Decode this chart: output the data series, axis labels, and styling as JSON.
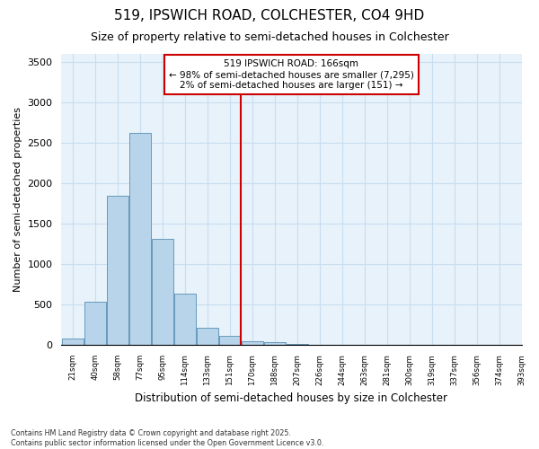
{
  "title1": "519, IPSWICH ROAD, COLCHESTER, CO4 9HD",
  "title2": "Size of property relative to semi-detached houses in Colchester",
  "xlabel": "Distribution of semi-detached houses by size in Colchester",
  "ylabel": "Number of semi-detached properties",
  "footnote": "Contains HM Land Registry data © Crown copyright and database right 2025.\nContains public sector information licensed under the Open Government Licence v3.0.",
  "xlabels": [
    "21sqm",
    "40sqm",
    "58sqm",
    "77sqm",
    "95sqm",
    "114sqm",
    "133sqm",
    "151sqm",
    "170sqm",
    "188sqm",
    "207sqm",
    "226sqm",
    "244sqm",
    "263sqm",
    "281sqm",
    "300sqm",
    "319sqm",
    "337sqm",
    "356sqm",
    "374sqm",
    "393sqm"
  ],
  "bar_values": [
    75,
    530,
    1840,
    2620,
    1310,
    635,
    210,
    115,
    50,
    30,
    10,
    5,
    2,
    0,
    0,
    0,
    0,
    0,
    0,
    0
  ],
  "bar_color": "#b8d4ea",
  "bar_edge_color": "#6699bb",
  "grid_color": "#c8ddf0",
  "background_color": "#e8f2fa",
  "vline_color": "#cc0000",
  "vline_x": 7.5,
  "annotation_text": "519 IPSWICH ROAD: 166sqm\n← 98% of semi-detached houses are smaller (7,295)\n2% of semi-detached houses are larger (151) →",
  "annotation_box_edgecolor": "#cc0000",
  "ylim": [
    0,
    3600
  ],
  "yticks": [
    0,
    500,
    1000,
    1500,
    2000,
    2500,
    3000,
    3500
  ]
}
